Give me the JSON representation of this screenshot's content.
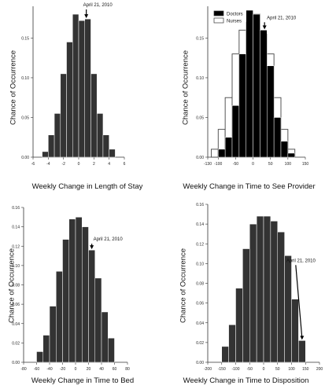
{
  "chart_data": [
    {
      "type": "bar",
      "xlabel": "Weekly Change in Length of Stay",
      "ylabel": "Chance of Occurrence",
      "x_ticks": [
        -6,
        -4,
        -2,
        0,
        2,
        4,
        6
      ],
      "y_ticks": [
        0.0,
        0.05,
        0.1,
        0.15
      ],
      "y_tick_labels": [
        "0.00",
        "0.05",
        "0.10",
        "0.15"
      ],
      "xlim": [
        -6,
        6
      ],
      "ylim": [
        0,
        0.19
      ],
      "bin_width": 0.8,
      "series": [
        {
          "fill": "#333333",
          "bins": [
            {
              "x": -4.4,
              "y": 0.007
            },
            {
              "x": -3.6,
              "y": 0.028
            },
            {
              "x": -2.8,
              "y": 0.055
            },
            {
              "x": -2.0,
              "y": 0.105
            },
            {
              "x": -1.2,
              "y": 0.145
            },
            {
              "x": -0.4,
              "y": 0.18
            },
            {
              "x": 0.4,
              "y": 0.172
            },
            {
              "x": 1.2,
              "y": 0.174
            },
            {
              "x": 2.0,
              "y": 0.105
            },
            {
              "x": 2.8,
              "y": 0.055
            },
            {
              "x": 3.6,
              "y": 0.028
            },
            {
              "x": 4.4,
              "y": 0.01
            }
          ]
        }
      ],
      "annotation": {
        "text": "April 21, 2010",
        "x": 1.0,
        "y": 0.174
      }
    },
    {
      "type": "bar",
      "xlabel": "Weekly Change in Time to See Provider",
      "ylabel": "Chance of Occurrence",
      "x_ticks": [
        -130,
        -100,
        -50,
        0,
        50,
        100,
        150
      ],
      "y_ticks": [
        0.0,
        0.05,
        0.1,
        0.15
      ],
      "y_tick_labels": [
        "0.00",
        "0.05",
        "0.10",
        "0.15"
      ],
      "xlim": [
        -130,
        150
      ],
      "ylim": [
        0,
        0.19
      ],
      "bin_width": 20,
      "legend": {
        "position": "top-left",
        "entries": [
          {
            "name": "Doctors",
            "fill": "#000000"
          },
          {
            "name": "Nurses",
            "fill": "#ffffff"
          }
        ]
      },
      "series": [
        {
          "name": "Nurses",
          "fill": "#ffffff",
          "stroke": "#444444",
          "bins": [
            {
              "x": -110,
              "y": 0.01
            },
            {
              "x": -90,
              "y": 0.035
            },
            {
              "x": -70,
              "y": 0.075
            },
            {
              "x": -50,
              "y": 0.13
            },
            {
              "x": -30,
              "y": 0.16
            },
            {
              "x": -10,
              "y": 0.17
            },
            {
              "x": 10,
              "y": 0.18
            },
            {
              "x": 30,
              "y": 0.155
            },
            {
              "x": 50,
              "y": 0.13
            },
            {
              "x": 70,
              "y": 0.075
            },
            {
              "x": 90,
              "y": 0.035
            },
            {
              "x": 110,
              "y": 0.01
            }
          ]
        },
        {
          "name": "Doctors",
          "fill": "#000000",
          "bins": [
            {
              "x": -90,
              "y": 0.01
            },
            {
              "x": -70,
              "y": 0.025
            },
            {
              "x": -50,
              "y": 0.065
            },
            {
              "x": -30,
              "y": 0.13
            },
            {
              "x": -10,
              "y": 0.185
            },
            {
              "x": 10,
              "y": 0.18
            },
            {
              "x": 30,
              "y": 0.16
            },
            {
              "x": 50,
              "y": 0.115
            },
            {
              "x": 70,
              "y": 0.05
            },
            {
              "x": 90,
              "y": 0.02
            },
            {
              "x": 110,
              "y": 0.005
            }
          ]
        }
      ],
      "annotation": {
        "text": "April 21, 2010",
        "x": 33,
        "y": 0.16
      }
    },
    {
      "type": "bar",
      "xlabel": "Weekly Change in Time to Bed",
      "ylabel": "Chance of Occurrence",
      "x_ticks": [
        -80,
        -60,
        -40,
        -20,
        0,
        20,
        40,
        60,
        80
      ],
      "y_ticks": [
        0.0,
        0.02,
        0.04,
        0.06,
        0.08,
        0.1,
        0.12,
        0.14,
        0.16
      ],
      "y_tick_labels": [
        "0.00",
        "0.02",
        "0.04",
        "0.06",
        "0.08",
        "0.10",
        "0.12",
        "0.14",
        "0.16"
      ],
      "xlim": [
        -80,
        80
      ],
      "ylim": [
        0,
        0.16
      ],
      "bin_width": 10,
      "series": [
        {
          "fill": "#333333",
          "bins": [
            {
              "x": -55,
              "y": 0.011
            },
            {
              "x": -45,
              "y": 0.028
            },
            {
              "x": -35,
              "y": 0.058
            },
            {
              "x": -25,
              "y": 0.094
            },
            {
              "x": -15,
              "y": 0.127
            },
            {
              "x": -5,
              "y": 0.148
            },
            {
              "x": 5,
              "y": 0.15
            },
            {
              "x": 15,
              "y": 0.14
            },
            {
              "x": 25,
              "y": 0.116
            },
            {
              "x": 35,
              "y": 0.087
            },
            {
              "x": 45,
              "y": 0.052
            },
            {
              "x": 55,
              "y": 0.025
            }
          ]
        }
      ],
      "annotation": {
        "text": "April 21, 2010",
        "x": 25,
        "y": 0.116
      }
    },
    {
      "type": "bar",
      "xlabel": "Weekly Change in Time to Disposition",
      "ylabel": "Chance of Occurrence",
      "x_ticks": [
        -200,
        -150,
        -100,
        -50,
        0,
        50,
        100,
        150,
        200
      ],
      "y_ticks": [
        0.0,
        0.02,
        0.04,
        0.06,
        0.08,
        0.1,
        0.12,
        0.14,
        0.16
      ],
      "y_tick_labels": [
        "0.00",
        "0.02",
        "0.04",
        "0.06",
        "0.08",
        "0.10",
        "0.12",
        "0.14",
        "0.16"
      ],
      "xlim": [
        -200,
        200
      ],
      "ylim": [
        0,
        0.16
      ],
      "bin_width": 25,
      "series": [
        {
          "fill": "#333333",
          "bins": [
            {
              "x": -137.5,
              "y": 0.016
            },
            {
              "x": -112.5,
              "y": 0.038
            },
            {
              "x": -87.5,
              "y": 0.075
            },
            {
              "x": -62.5,
              "y": 0.115
            },
            {
              "x": -37.5,
              "y": 0.14
            },
            {
              "x": -12.5,
              "y": 0.148
            },
            {
              "x": 12.5,
              "y": 0.148
            },
            {
              "x": 37.5,
              "y": 0.143
            },
            {
              "x": 62.5,
              "y": 0.132
            },
            {
              "x": 87.5,
              "y": 0.108
            },
            {
              "x": 112.5,
              "y": 0.064
            },
            {
              "x": 137.5,
              "y": 0.022
            }
          ]
        }
      ],
      "annotation": {
        "text": "April 21, 2010",
        "x": 137.5,
        "y": 0.022
      }
    }
  ]
}
